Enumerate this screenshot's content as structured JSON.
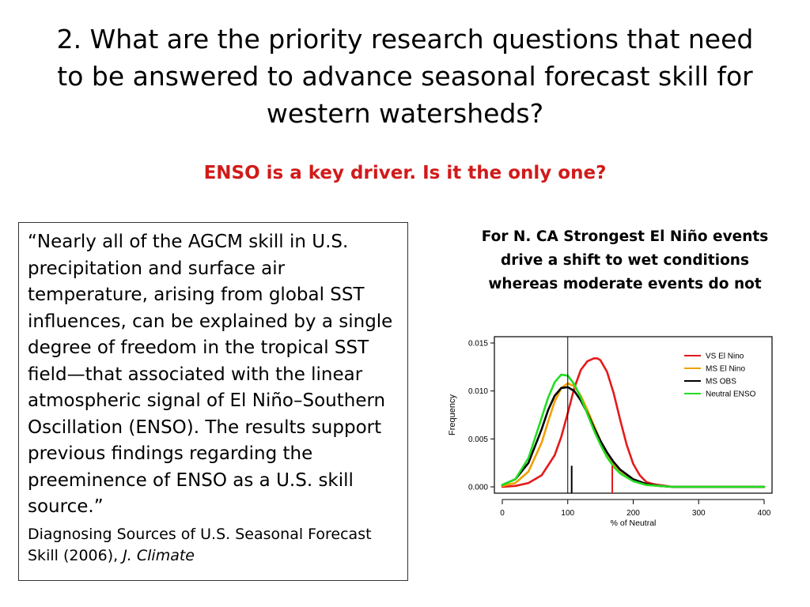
{
  "slide": {
    "title": "2. What are the priority research questions that need to be answered to advance seasonal forecast skill for western watersheds?",
    "subtitle": "ENSO is a key driver.  Is it the only one?"
  },
  "quote": {
    "text": "“Nearly all of the AGCM skill in U.S. precipitation and surface air temperature, arising from global SST influences, can be explained by a single degree of freedom in the tropical SST field—that associated with the linear atmospheric signal of El Niño–Southern Oscillation (ENSO). The results support previous findings regarding the preeminence of ENSO as a U.S. skill source.”",
    "citation_text": "Diagnosing Sources of U.S. Seasonal Forecast Skill (2006), ",
    "citation_journal": "J. Climate"
  },
  "chart_caption": "For N. CA Strongest El Niño events drive a shift to wet conditions whereas moderate events do not",
  "chart_data": {
    "type": "line",
    "xlabel": "% of Neutral",
    "ylabel": "Frequency",
    "xlim": [
      0,
      400
    ],
    "ylim": [
      0,
      0.015
    ],
    "xticks": [
      0,
      100,
      200,
      300,
      400
    ],
    "yticks": [
      0.0,
      0.005,
      0.01,
      0.015
    ],
    "ytick_labels": [
      "0.000",
      "0.005",
      "0.010",
      "0.015"
    ],
    "legend_position": "top-right",
    "series": [
      {
        "name": "VS El Nino",
        "color": "#e41a1c",
        "x": [
          0,
          20,
          40,
          60,
          80,
          90,
          100,
          110,
          120,
          130,
          140,
          145,
          150,
          160,
          170,
          180,
          190,
          200,
          210,
          220,
          230,
          240,
          250,
          260,
          280,
          300,
          400
        ],
        "y": [
          0.0,
          0.0001,
          0.0004,
          0.0012,
          0.0033,
          0.0052,
          0.0077,
          0.0103,
          0.0122,
          0.0131,
          0.0134,
          0.0134,
          0.0132,
          0.012,
          0.0098,
          0.007,
          0.0044,
          0.0024,
          0.0012,
          0.0005,
          0.0003,
          0.0002,
          0.0001,
          0.0,
          0.0,
          0.0,
          0.0
        ]
      },
      {
        "name": "MS El Nino",
        "color": "#f0a000",
        "x": [
          0,
          20,
          40,
          60,
          70,
          80,
          90,
          100,
          110,
          120,
          130,
          140,
          150,
          160,
          170,
          180,
          200,
          220,
          240,
          260,
          300,
          400
        ],
        "y": [
          0.0001,
          0.0004,
          0.0016,
          0.0046,
          0.0068,
          0.0089,
          0.0103,
          0.0108,
          0.0105,
          0.0095,
          0.008,
          0.0064,
          0.0048,
          0.0034,
          0.0023,
          0.0015,
          0.0006,
          0.0002,
          0.0001,
          0.0,
          0.0,
          0.0
        ]
      },
      {
        "name": "MS OBS",
        "color": "#000000",
        "x": [
          0,
          20,
          40,
          60,
          70,
          80,
          90,
          100,
          110,
          120,
          130,
          140,
          150,
          160,
          170,
          180,
          200,
          220,
          240,
          260,
          300,
          400
        ],
        "y": [
          0.0002,
          0.0008,
          0.0025,
          0.006,
          0.008,
          0.0095,
          0.0103,
          0.0104,
          0.01,
          0.009,
          0.0077,
          0.0062,
          0.0048,
          0.0036,
          0.0026,
          0.0018,
          0.0008,
          0.0003,
          0.0001,
          0.0,
          0.0,
          0.0
        ]
      },
      {
        "name": "Neutral ENSO",
        "color": "#22dd22",
        "x": [
          0,
          20,
          40,
          60,
          70,
          80,
          90,
          100,
          110,
          120,
          130,
          140,
          150,
          160,
          170,
          180,
          200,
          220,
          240,
          260,
          300,
          400
        ],
        "y": [
          0.0002,
          0.0008,
          0.003,
          0.0072,
          0.0093,
          0.0109,
          0.0117,
          0.0116,
          0.0107,
          0.0093,
          0.0076,
          0.0059,
          0.0044,
          0.0031,
          0.0021,
          0.0014,
          0.0006,
          0.0002,
          0.0001,
          0.0,
          0.0,
          0.0
        ]
      }
    ],
    "vertical_lines": [
      {
        "x": 100,
        "y_top": 0.015,
        "color": "#000000"
      },
      {
        "x": 106,
        "y_top": 0.0022,
        "color": "#000000"
      },
      {
        "x": 168,
        "y_top": 0.0022,
        "color": "#e41a1c"
      }
    ]
  }
}
